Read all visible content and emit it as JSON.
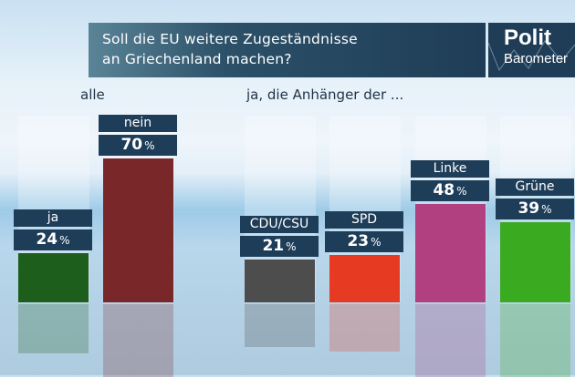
{
  "header": {
    "question_line1": "Soll die EU weitere Zugeständnisse",
    "question_line2": "an Griechenland machen?"
  },
  "logo": {
    "line1": "Polit",
    "line2": "Barometer"
  },
  "chart_data": {
    "type": "bar",
    "title": "Soll die EU weitere Zugeständnisse an Griechenland machen?",
    "xlabel": "",
    "ylabel": "",
    "ylim": [
      0,
      100
    ],
    "unit": "%",
    "groups": [
      {
        "label": "alle",
        "categories": [
          "ja",
          "nein"
        ]
      },
      {
        "label": "ja, die Anhänger der ...",
        "categories": [
          "CDU/CSU",
          "SPD",
          "Linke",
          "Grüne"
        ]
      }
    ],
    "categories": [
      "ja",
      "nein",
      "CDU/CSU",
      "SPD",
      "Linke",
      "Grüne"
    ],
    "values": [
      24,
      70,
      21,
      23,
      48,
      39
    ],
    "colors": [
      "#1d5e1c",
      "#7a2729",
      "#4d4d4d",
      "#e73a22",
      "#b0407f",
      "#3aaa21"
    ]
  }
}
